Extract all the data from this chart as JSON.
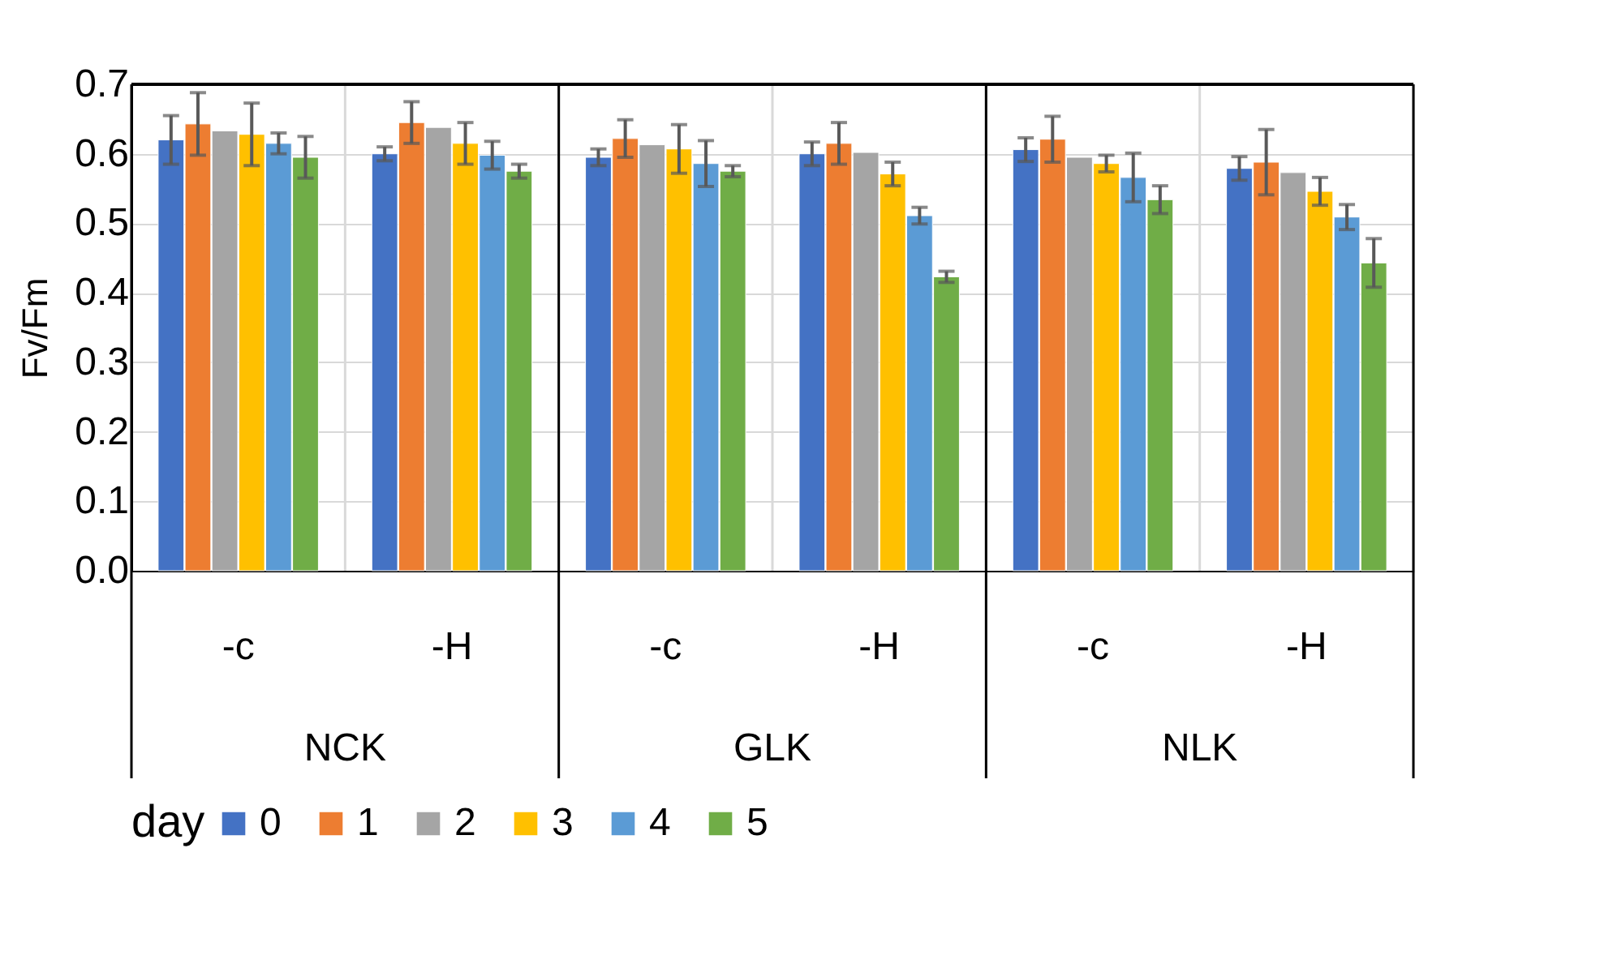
{
  "chart_data": {
    "type": "bar",
    "ylabel": "Fv/Fm",
    "legend_title": "day",
    "categories": [
      "-c",
      "-H",
      "-c",
      "-H",
      "-c",
      "-H"
    ],
    "annotations": [
      "NCK",
      "GLK",
      "NLK"
    ],
    "series": [
      {
        "name": "0",
        "color": "#4472c4",
        "values": [
          0.62,
          0.6,
          0.595,
          0.6,
          0.606,
          0.579
        ],
        "errors": [
          0.035,
          0.01,
          0.012,
          0.017,
          0.017,
          0.017
        ]
      },
      {
        "name": "1",
        "color": "#ed7d31",
        "values": [
          0.643,
          0.645,
          0.622,
          0.615,
          0.621,
          0.588
        ],
        "errors": [
          0.045,
          0.03,
          0.027,
          0.03,
          0.033,
          0.047
        ]
      },
      {
        "name": "2",
        "color": "#a5a5a5",
        "values": [
          0.633,
          0.638,
          0.613,
          0.602,
          0.595,
          0.573
        ],
        "errors": [
          null,
          null,
          null,
          null,
          null,
          null
        ]
      },
      {
        "name": "3",
        "color": "#ffc000",
        "values": [
          0.628,
          0.615,
          0.607,
          0.571,
          0.586,
          0.546
        ],
        "errors": [
          0.045,
          0.03,
          0.035,
          0.017,
          0.012,
          0.02
        ]
      },
      {
        "name": "4",
        "color": "#5b9bd5",
        "values": [
          0.615,
          0.598,
          0.586,
          0.511,
          0.566,
          0.509
        ],
        "errors": [
          0.015,
          0.02,
          0.033,
          0.012,
          0.035,
          0.018
        ]
      },
      {
        "name": "5",
        "color": "#70ad47",
        "values": [
          0.595,
          0.575,
          0.575,
          0.423,
          0.534,
          0.443
        ],
        "errors": [
          0.03,
          0.01,
          0.008,
          0.008,
          0.02,
          0.035
        ]
      }
    ],
    "ylim": [
      0,
      0.7
    ],
    "yticks": [
      {
        "value": 0,
        "label": "0.0"
      },
      0.1,
      0.2,
      0.3,
      0.4,
      0.5,
      0.6,
      0.7
    ],
    "grid": true,
    "legend": "bottom"
  }
}
